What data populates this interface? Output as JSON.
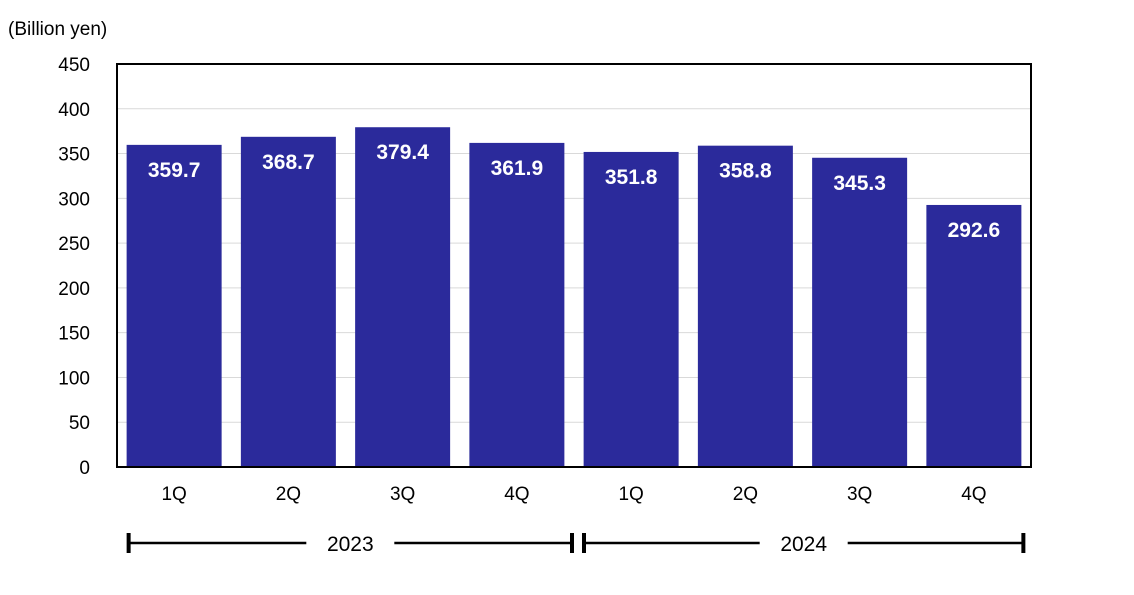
{
  "chart_data": {
    "type": "bar",
    "unit_label": "(Billion yen)",
    "categories": [
      "1Q",
      "2Q",
      "3Q",
      "4Q",
      "1Q",
      "2Q",
      "3Q",
      "4Q"
    ],
    "values": [
      359.7,
      368.7,
      379.4,
      361.9,
      351.8,
      358.8,
      345.3,
      292.6
    ],
    "value_labels": [
      "359.7",
      "368.7",
      "379.4",
      "361.9",
      "351.8",
      "358.8",
      "345.3",
      "292.6"
    ],
    "y_ticks": [
      "0",
      "50",
      "100",
      "150",
      "200",
      "250",
      "300",
      "350",
      "400",
      "450"
    ],
    "ylim": [
      0,
      450
    ],
    "year_groups": [
      {
        "label": "2023",
        "start": 0,
        "end": 3
      },
      {
        "label": "2024",
        "start": 4,
        "end": 7
      }
    ],
    "grid": true,
    "bar_color": "#2b2a9b"
  }
}
